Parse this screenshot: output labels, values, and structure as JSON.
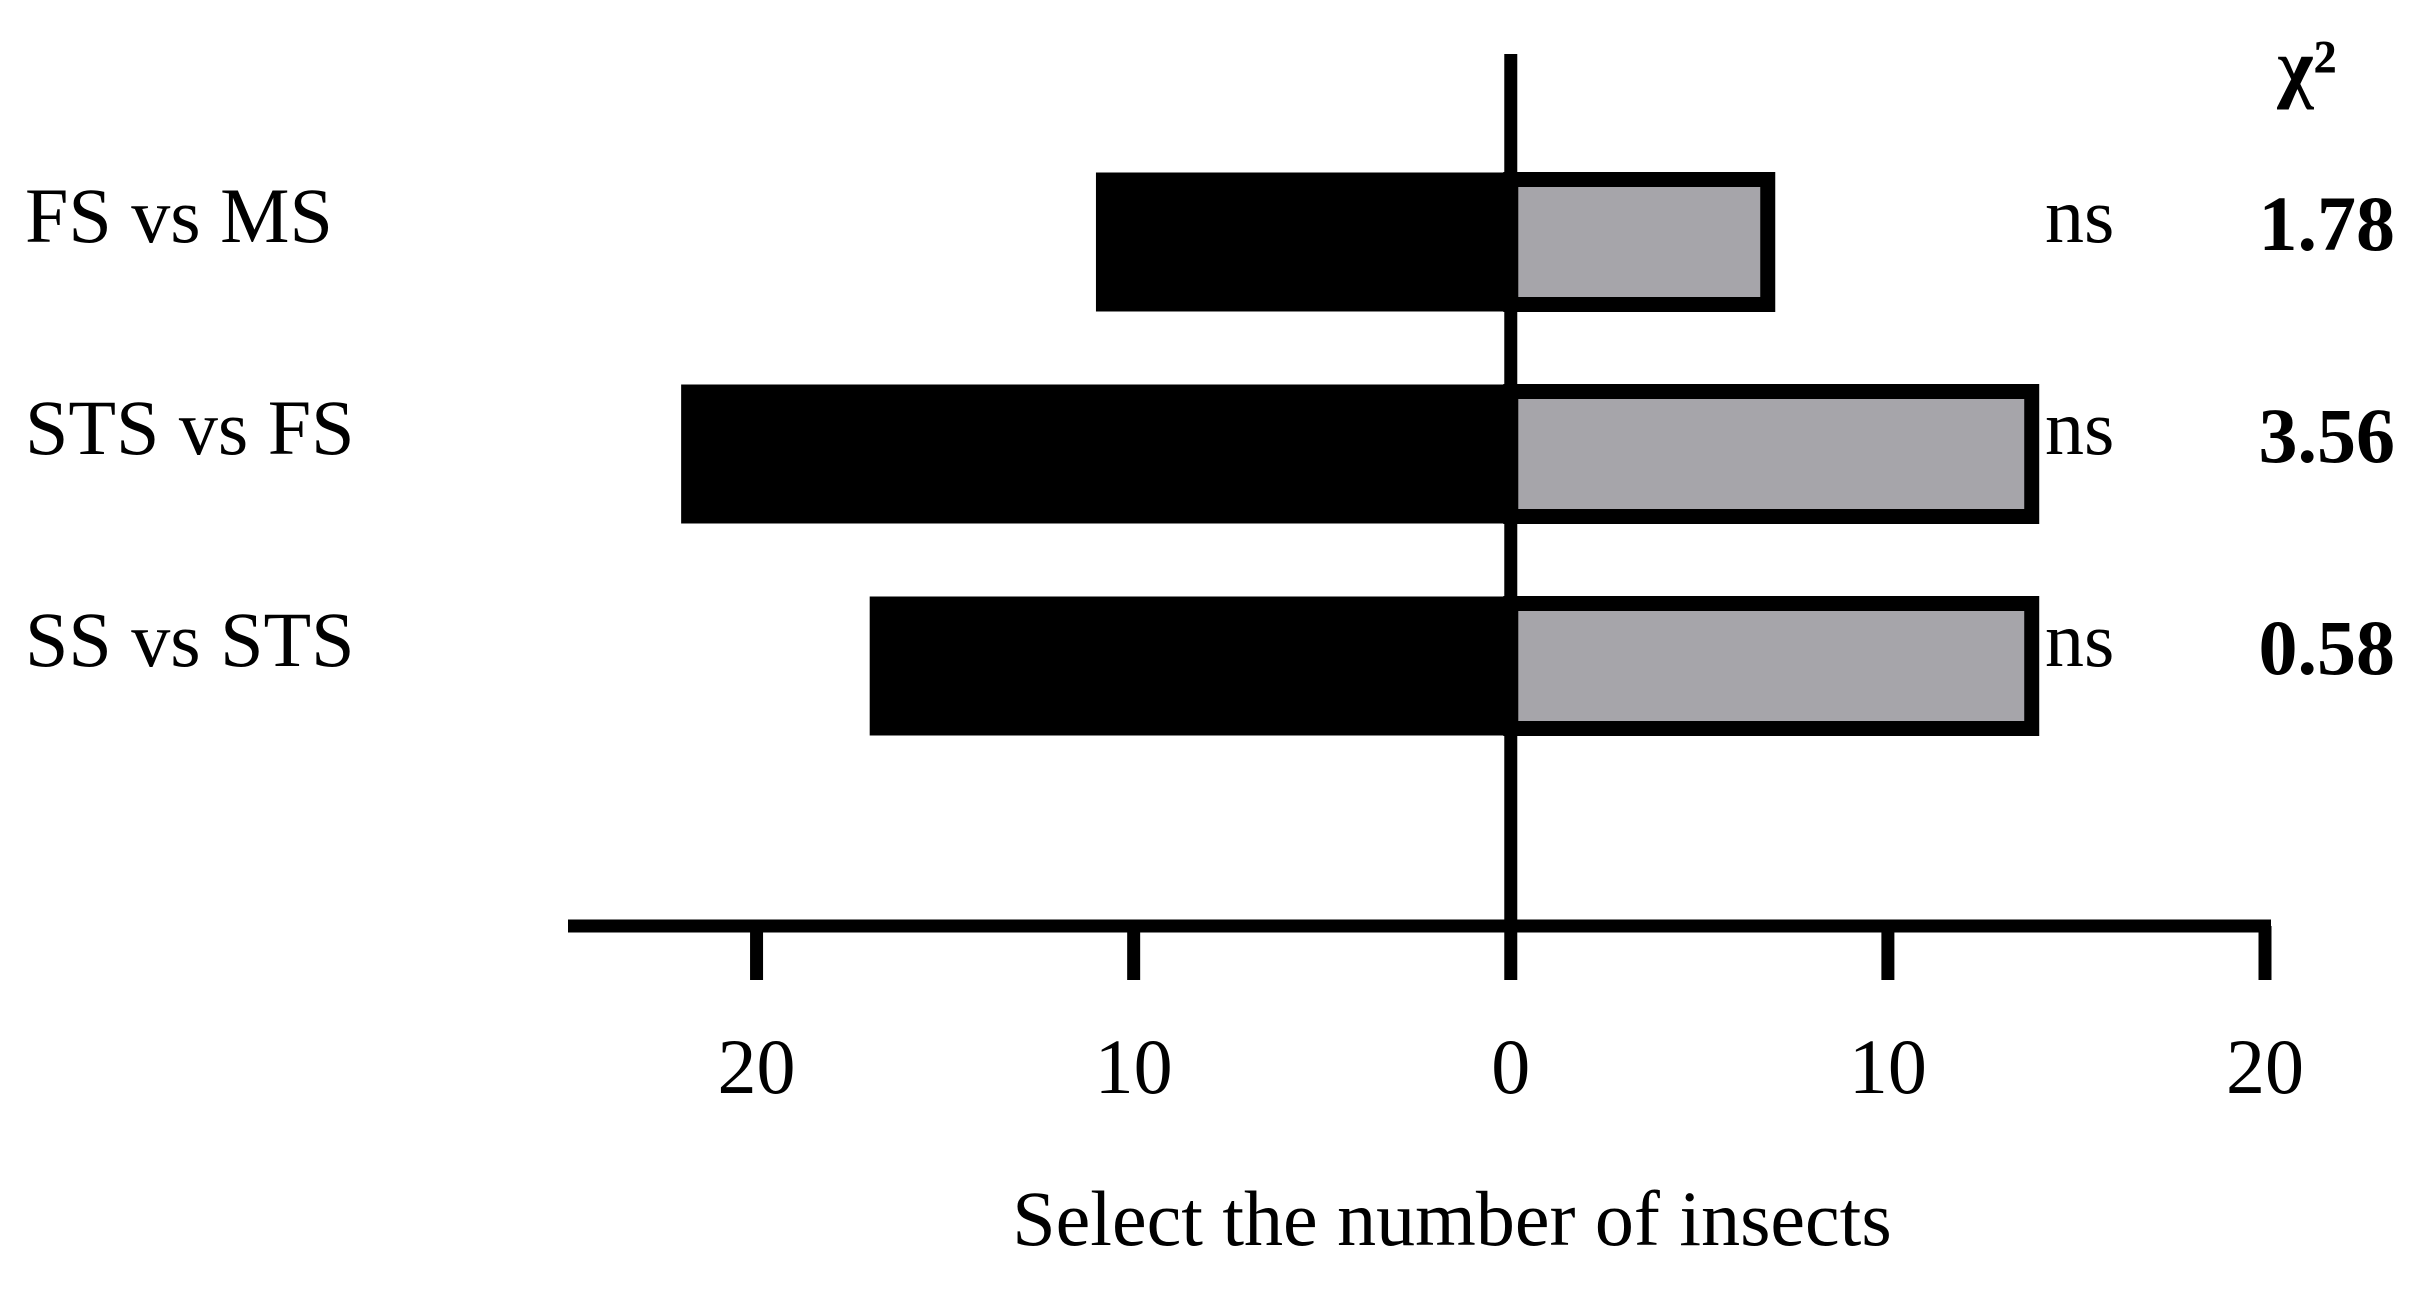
{
  "chart_data": {
    "type": "diverging-bar",
    "x_label": "Select the number of insects",
    "categories": [
      "FS vs MS",
      "STS vs FS",
      "SS vs STS"
    ],
    "series": [
      {
        "color": "#000000",
        "values": [
          -11,
          -22,
          -17
        ]
      },
      {
        "color": "#a6a5aa",
        "values": [
          7,
          14,
          14
        ]
      }
    ],
    "xlim": [
      -25,
      20
    ],
    "xticks": [
      {
        "value": -20,
        "label": "20"
      },
      {
        "value": -10,
        "label": "10"
      },
      0,
      10,
      {
        "value": 20,
        "label": "20"
      }
    ],
    "significance_header": null,
    "chi_square_header": "χ²",
    "significance": [
      "ns",
      "ns",
      "ns"
    ],
    "chi_square": [
      "1.78",
      "3.56",
      "0.58"
    ]
  }
}
